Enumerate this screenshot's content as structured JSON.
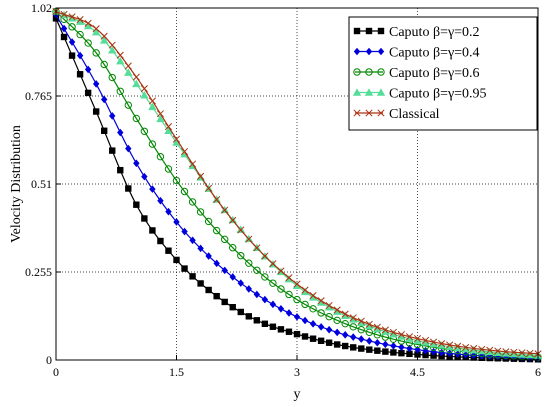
{
  "chart_data": {
    "type": "line",
    "title": "",
    "xlabel": "y",
    "ylabel": "Velocity Distribution",
    "xlim": [
      0,
      6
    ],
    "ylim": [
      0,
      1.02
    ],
    "xticks": [
      "0",
      "1.5",
      "3",
      "4.5",
      "6"
    ],
    "yticks": [
      "0",
      "0.255",
      "0.51",
      "0.765",
      "1.02"
    ],
    "grid": true,
    "legend_position": "top-right",
    "x": [
      0,
      0.5,
      1,
      1.5,
      2,
      2.5,
      3,
      3.5,
      4,
      4.5,
      5,
      5.5,
      6
    ],
    "series": [
      {
        "name": "Caputo β=γ=0.2",
        "color": "#000000",
        "marker": "filled-square",
        "values": [
          0.99,
          0.72,
          0.45,
          0.29,
          0.185,
          0.115,
          0.075,
          0.045,
          0.027,
          0.016,
          0.009,
          0.005,
          0.002
        ]
      },
      {
        "name": "Caputo β=γ=0.4",
        "color": "#0000dd",
        "marker": "filled-diamond",
        "values": [
          1.0,
          0.8,
          0.57,
          0.4,
          0.28,
          0.19,
          0.125,
          0.08,
          0.05,
          0.03,
          0.017,
          0.009,
          0.004
        ]
      },
      {
        "name": "Caputo β=γ=0.6",
        "color": "#008800",
        "marker": "open-circle",
        "values": [
          1.01,
          0.89,
          0.7,
          0.52,
          0.375,
          0.26,
          0.175,
          0.115,
          0.073,
          0.045,
          0.027,
          0.015,
          0.008
        ]
      },
      {
        "name": "Caputo β=γ=0.95",
        "color": "#55dd99",
        "marker": "filled-triangle",
        "values": [
          1.01,
          0.95,
          0.8,
          0.63,
          0.465,
          0.325,
          0.215,
          0.14,
          0.09,
          0.056,
          0.035,
          0.021,
          0.013
        ]
      },
      {
        "name": "Classical",
        "color": "#aa3311",
        "marker": "x",
        "values": [
          1.01,
          0.96,
          0.82,
          0.64,
          0.465,
          0.325,
          0.22,
          0.145,
          0.095,
          0.062,
          0.04,
          0.026,
          0.018
        ]
      }
    ]
  }
}
